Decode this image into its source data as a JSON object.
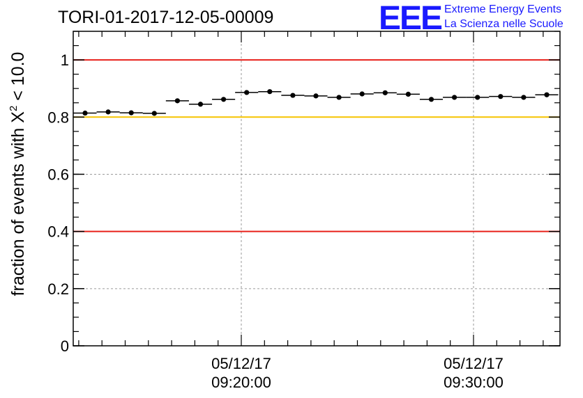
{
  "header": {
    "title": "TORI-01-2017-12-05-00009",
    "logo_text": "EEE",
    "logo_line1": "Extreme Energy Events",
    "logo_line2": "La Scienza nelle Scuole"
  },
  "colors": {
    "logo": "#1a1aff",
    "limit_red": "#e8201a",
    "limit_yellow": "#f5c400",
    "markers": "#000000",
    "grid": "#9a9a9a"
  },
  "chart_data": {
    "type": "scatter",
    "title": "TORI-01-2017-12-05-00009",
    "ylabel_prefix": "fraction of events with ",
    "ylabel_symbol": "X",
    "ylabel_exponent": "2",
    "ylabel_suffix": " < 10.0",
    "xlabel": "",
    "ylim": [
      0,
      1.1
    ],
    "y_ticks": [
      0,
      0.2,
      0.4,
      0.6,
      0.8,
      1
    ],
    "y_tick_labels": [
      "0",
      "0.2",
      "0.4",
      "0.6",
      "0.8",
      "1"
    ],
    "x_tick_labels": [
      {
        "date": "05/12/17",
        "time": "09:20:00"
      },
      {
        "date": "05/12/17",
        "time": "09:30:00"
      }
    ],
    "grid": true,
    "reference_lines": [
      {
        "y": 1.0,
        "color": "#e8201a"
      },
      {
        "y": 0.8,
        "color": "#f5c400"
      },
      {
        "y": 0.4,
        "color": "#e8201a"
      }
    ],
    "points": [
      {
        "y": 0.814,
        "err": 0.008
      },
      {
        "y": 0.818,
        "err": 0.008
      },
      {
        "y": 0.815,
        "err": 0.008
      },
      {
        "y": 0.813,
        "err": 0.008
      },
      {
        "y": 0.857,
        "err": 0.007
      },
      {
        "y": 0.845,
        "err": 0.007
      },
      {
        "y": 0.862,
        "err": 0.007
      },
      {
        "y": 0.886,
        "err": 0.007
      },
      {
        "y": 0.889,
        "err": 0.007
      },
      {
        "y": 0.876,
        "err": 0.007
      },
      {
        "y": 0.874,
        "err": 0.007
      },
      {
        "y": 0.869,
        "err": 0.007
      },
      {
        "y": 0.881,
        "err": 0.007
      },
      {
        "y": 0.885,
        "err": 0.007
      },
      {
        "y": 0.88,
        "err": 0.007
      },
      {
        "y": 0.862,
        "err": 0.007
      },
      {
        "y": 0.869,
        "err": 0.007
      },
      {
        "y": 0.869,
        "err": 0.007
      },
      {
        "y": 0.872,
        "err": 0.007
      },
      {
        "y": 0.869,
        "err": 0.007
      },
      {
        "y": 0.878,
        "err": 0.007
      }
    ]
  }
}
